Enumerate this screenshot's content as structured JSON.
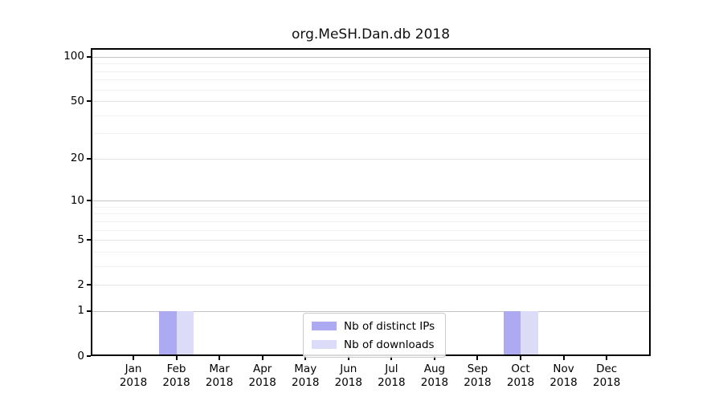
{
  "chart_data": {
    "type": "bar",
    "title": "org.MeSH.Dan.db 2018",
    "categories": [
      "Jan 2018",
      "Feb 2018",
      "Mar 2018",
      "Apr 2018",
      "May 2018",
      "Jun 2018",
      "Jul 2018",
      "Aug 2018",
      "Sep 2018",
      "Oct 2018",
      "Nov 2018",
      "Dec 2018"
    ],
    "series": [
      {
        "name": "Nb of distinct IPs",
        "color": "#adaaf2",
        "values": [
          0,
          1,
          0,
          0,
          0,
          0,
          0,
          0,
          0,
          1,
          0,
          0
        ]
      },
      {
        "name": "Nb of downloads",
        "color": "#dcdcf8",
        "values": [
          0,
          1,
          0,
          0,
          0,
          0,
          0,
          0,
          0,
          1,
          0,
          0
        ]
      }
    ],
    "xlabel": "",
    "ylabel": "",
    "yscale": "log1p",
    "ylim": [
      0,
      114
    ],
    "y_ticks": [
      0,
      1,
      2,
      5,
      10,
      20,
      50,
      100
    ],
    "y_gridlines": {
      "decade": [
        1,
        10,
        100
      ],
      "sub": [
        2,
        5,
        20,
        50
      ],
      "minor": [
        3,
        4,
        6,
        7,
        8,
        9,
        30,
        40,
        60,
        70,
        80,
        90
      ]
    },
    "grid": true,
    "legend_position": "lower center"
  },
  "colors": {
    "background": "#ffffff",
    "axis": "#000000",
    "grid_decade": "#c3c3c3",
    "grid_sub": "#e4e4e4",
    "grid_minor": "#f2f2f2",
    "legend_border": "#cbcbcb"
  }
}
